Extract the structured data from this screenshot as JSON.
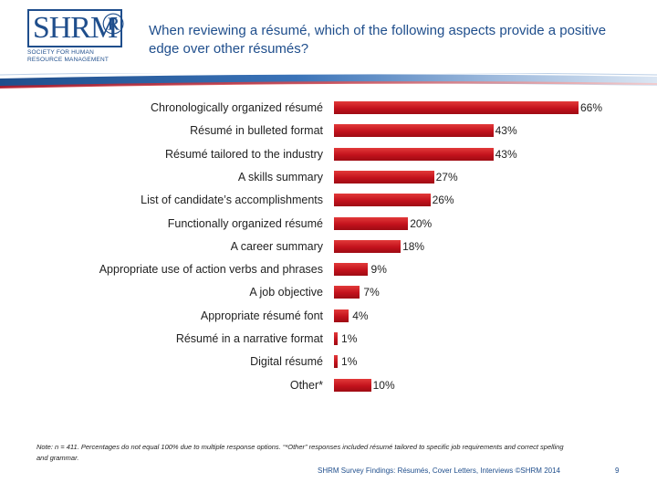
{
  "logo": {
    "main": "SHRM",
    "registered": "®",
    "sub": "Society for Human Resource Management"
  },
  "header": {
    "title": "When reviewing a résumé, which of the following aspects provide a positive edge over other résumés?"
  },
  "chart_data": {
    "type": "bar",
    "orientation": "horizontal",
    "categories": [
      "Chronologically organized résumé",
      "Résumé in bulleted format",
      "Résumé tailored to the industry",
      "A skills summary",
      "List of candidate’s accomplishments",
      "Functionally organized résumé",
      "A career summary",
      "Appropriate use of action verbs and phrases",
      "A job objective",
      "Appropriate résumé font",
      "Résumé in a narrative format",
      "Digital résumé",
      "Other*"
    ],
    "values": [
      66,
      43,
      43,
      27,
      26,
      20,
      18,
      9,
      7,
      4,
      1,
      1,
      10
    ],
    "value_labels": [
      "66%",
      "43%",
      "43%",
      "27%",
      "26%",
      "20%",
      "18%",
      "9%",
      "7%",
      "4%",
      "1%",
      "1%",
      "10%"
    ],
    "unit": "%",
    "xlim": [
      0,
      66
    ],
    "grid": false,
    "legend": "none",
    "bar_color": "#c3121c"
  },
  "footnote": "Note: n = 411. Percentages do not equal 100% due to multiple response options. “*Other” responses included résumé tailored to specific job requirements and correct spelling and grammar.",
  "footer": {
    "source": "SHRM Survey Findings: Résumés, Cover Letters, Interviews ©SHRM 2014",
    "page": "9"
  }
}
